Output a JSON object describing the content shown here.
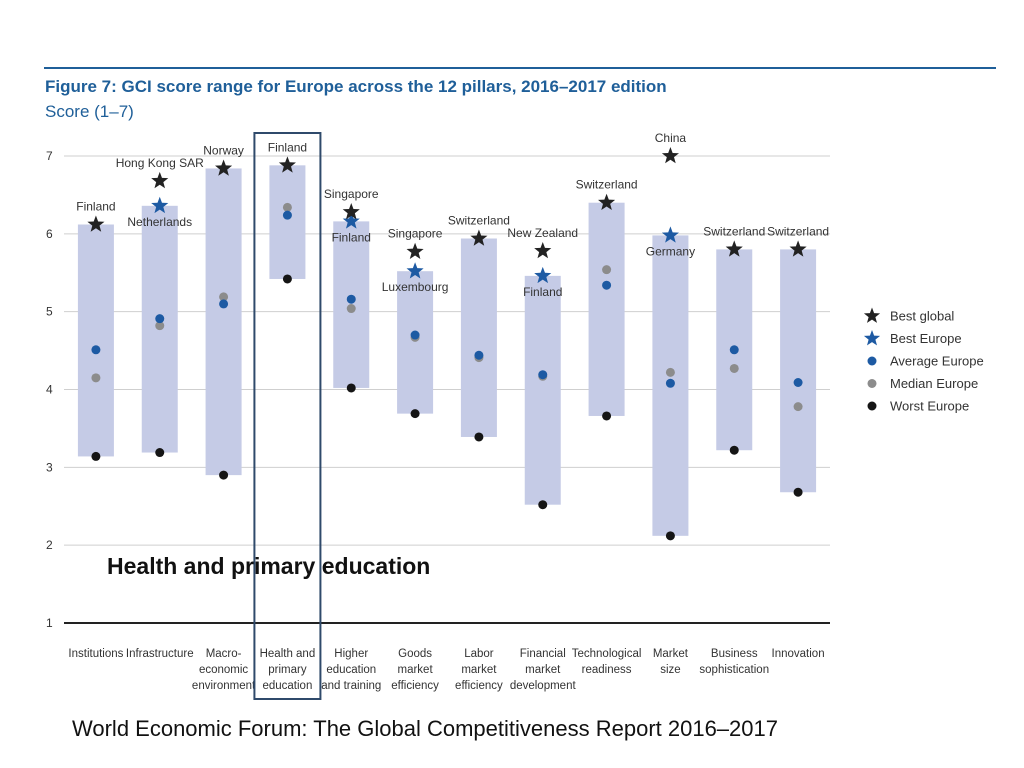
{
  "figure": {
    "title": "Figure 7: GCI score range for Europe across the 12 pillars, 2016–2017 edition",
    "subtitle": "Score (1–7)"
  },
  "callout": "Health and primary education",
  "caption": "World Economic Forum: The Global Competitiveness Report 2016–2017",
  "colors": {
    "range_band": "#c5cbe6",
    "best_global": "#222222",
    "best_europe": "#1d5aa3",
    "average_europe": "#1d5aa3",
    "median_europe": "#8c8c8c",
    "worst_europe": "#151515",
    "highlight": "#2f4a6b",
    "title": "#1f5f99"
  },
  "chart_data": {
    "type": "range",
    "ylim": [
      1,
      7
    ],
    "yticks": [
      "1",
      "2",
      "3",
      "4",
      "5",
      "6",
      "7"
    ],
    "grid": true,
    "legend_position": "right",
    "highlighted_category": "Health and primary education",
    "legend": [
      {
        "key": "best_global",
        "label": "Best global",
        "marker": "star"
      },
      {
        "key": "best_europe",
        "label": "Best Europe",
        "marker": "star"
      },
      {
        "key": "average_europe",
        "label": "Average Europe",
        "marker": "dot"
      },
      {
        "key": "median_europe",
        "label": "Median Europe",
        "marker": "dot"
      },
      {
        "key": "worst_europe",
        "label": "Worst Europe",
        "marker": "dot"
      }
    ],
    "categories": [
      {
        "name": "Institutions",
        "label_lines": [
          "Institutions"
        ],
        "best_global": 6.12,
        "best_global_label": "Finland",
        "best_europe": 6.12,
        "best_europe_label": "",
        "average_europe": 4.51,
        "median_europe": 4.15,
        "worst_europe": 3.14
      },
      {
        "name": "Infrastructure",
        "label_lines": [
          "Infrastructure"
        ],
        "best_global": 6.68,
        "best_global_label": "Hong Kong SAR",
        "best_europe": 6.36,
        "best_europe_label": "Netherlands",
        "average_europe": 4.91,
        "median_europe": 4.82,
        "worst_europe": 3.19
      },
      {
        "name": "Macroeconomic environment",
        "label_lines": [
          "Macro-",
          "economic",
          "environment"
        ],
        "best_global": 6.84,
        "best_global_label": "Norway",
        "best_europe": 6.84,
        "best_europe_label": "",
        "average_europe": 5.1,
        "median_europe": 5.19,
        "worst_europe": 2.9
      },
      {
        "name": "Health and primary education",
        "label_lines": [
          "Health and",
          "primary",
          "education"
        ],
        "best_global": 6.88,
        "best_global_label": "Finland",
        "best_europe": 6.88,
        "best_europe_label": "",
        "average_europe": 6.24,
        "median_europe": 6.34,
        "worst_europe": 5.42
      },
      {
        "name": "Higher education and training",
        "label_lines": [
          "Higher",
          "education",
          "and training"
        ],
        "best_global": 6.28,
        "best_global_label": "Singapore",
        "best_europe": 6.16,
        "best_europe_label": "Finland",
        "average_europe": 5.16,
        "median_europe": 5.04,
        "worst_europe": 4.02
      },
      {
        "name": "Goods market efficiency",
        "label_lines": [
          "Goods",
          "market",
          "efficiency"
        ],
        "best_global": 5.77,
        "best_global_label": "Singapore",
        "best_europe": 5.52,
        "best_europe_label": "Luxembourg",
        "average_europe": 4.7,
        "median_europe": 4.67,
        "worst_europe": 3.69
      },
      {
        "name": "Labor market efficiency",
        "label_lines": [
          "Labor",
          "market",
          "efficiency"
        ],
        "best_global": 5.94,
        "best_global_label": "Switzerland",
        "best_europe": 5.94,
        "best_europe_label": "",
        "average_europe": 4.44,
        "median_europe": 4.41,
        "worst_europe": 3.39
      },
      {
        "name": "Financial market development",
        "label_lines": [
          "Financial",
          "market",
          "development"
        ],
        "best_global": 5.78,
        "best_global_label": "New Zealand",
        "best_europe": 5.46,
        "best_europe_label": "Finland",
        "average_europe": 4.19,
        "median_europe": 4.17,
        "worst_europe": 2.52
      },
      {
        "name": "Technological readiness",
        "label_lines": [
          "Technological",
          "readiness"
        ],
        "best_global": 6.4,
        "best_global_label": "Switzerland",
        "best_europe": 6.4,
        "best_europe_label": "",
        "average_europe": 5.34,
        "median_europe": 5.54,
        "worst_europe": 3.66
      },
      {
        "name": "Market size",
        "label_lines": [
          "Market",
          "size"
        ],
        "best_global": 7.0,
        "best_global_label": "China",
        "best_europe": 5.98,
        "best_europe_label": "Germany",
        "average_europe": 4.08,
        "median_europe": 4.22,
        "worst_europe": 2.12
      },
      {
        "name": "Business sophistication",
        "label_lines": [
          "Business",
          "sophistication"
        ],
        "best_global": 5.8,
        "best_global_label": "Switzerland",
        "best_europe": 5.8,
        "best_europe_label": "",
        "average_europe": 4.51,
        "median_europe": 4.27,
        "worst_europe": 3.22
      },
      {
        "name": "Innovation",
        "label_lines": [
          "Innovation"
        ],
        "best_global": 5.8,
        "best_global_label": "Switzerland",
        "best_europe": 5.8,
        "best_europe_label": "",
        "average_europe": 4.09,
        "median_europe": 3.78,
        "worst_europe": 2.68
      }
    ]
  }
}
